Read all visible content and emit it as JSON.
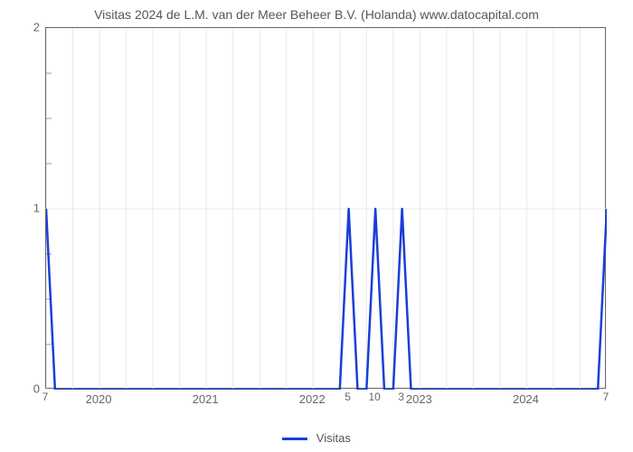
{
  "chart": {
    "type": "line",
    "title": "Visitas 2024 de L.M. van der Meer Beheer B.V. (Holanda) www.datocapital.com",
    "title_fontsize": 14,
    "title_color": "#555555",
    "background_color": "#ffffff",
    "plot_border_color": "#666666",
    "grid_color": "#e8e8e8",
    "line_color": "#1a3fd6",
    "line_width": 2.5,
    "xlim": [
      0,
      63
    ],
    "ylim": [
      0,
      2
    ],
    "y_ticks": [
      0,
      1,
      2
    ],
    "y_minor_ticks": [
      0.25,
      0.5,
      0.75,
      1.25,
      1.5,
      1.75
    ],
    "x_major_labels": [
      {
        "x": 6,
        "label": "2020"
      },
      {
        "x": 18,
        "label": "2021"
      },
      {
        "x": 30,
        "label": "2022"
      },
      {
        "x": 42,
        "label": "2023"
      },
      {
        "x": 54,
        "label": "2024"
      }
    ],
    "x_major_positions": [
      0,
      3,
      6,
      9,
      12,
      15,
      18,
      21,
      24,
      27,
      30,
      33,
      36,
      39,
      42,
      45,
      48,
      51,
      54,
      57,
      60,
      63
    ],
    "data": {
      "x": [
        0,
        1,
        2,
        3,
        4,
        5,
        6,
        7,
        8,
        9,
        10,
        11,
        12,
        13,
        14,
        15,
        16,
        17,
        18,
        19,
        20,
        21,
        22,
        23,
        24,
        25,
        26,
        27,
        28,
        29,
        30,
        31,
        32,
        33,
        34,
        35,
        36,
        37,
        38,
        39,
        40,
        41,
        42,
        43,
        44,
        45,
        46,
        47,
        48,
        49,
        50,
        51,
        52,
        53,
        54,
        55,
        56,
        57,
        58,
        59,
        60,
        61,
        62,
        63
      ],
      "y": [
        7,
        0,
        0,
        0,
        0,
        0,
        0,
        0,
        0,
        0,
        0,
        0,
        0,
        0,
        0,
        0,
        0,
        0,
        0,
        0,
        0,
        0,
        0,
        0,
        0,
        0,
        0,
        0,
        0,
        0,
        0,
        0,
        0,
        0,
        5,
        0,
        0,
        10,
        0,
        0,
        3,
        0,
        0,
        0,
        0,
        0,
        0,
        0,
        0,
        0,
        0,
        0,
        0,
        0,
        0,
        0,
        0,
        0,
        0,
        0,
        0,
        0,
        0,
        7
      ],
      "y_capped": [
        1,
        0,
        0,
        0,
        0,
        0,
        0,
        0,
        0,
        0,
        0,
        0,
        0,
        0,
        0,
        0,
        0,
        0,
        0,
        0,
        0,
        0,
        0,
        0,
        0,
        0,
        0,
        0,
        0,
        0,
        0,
        0,
        0,
        0,
        1,
        0,
        0,
        1,
        0,
        0,
        1,
        0,
        0,
        0,
        0,
        0,
        0,
        0,
        0,
        0,
        0,
        0,
        0,
        0,
        0,
        0,
        0,
        0,
        0,
        0,
        0,
        0,
        0,
        1
      ]
    },
    "point_labels": [
      {
        "x": 0,
        "value": "7"
      },
      {
        "x": 34,
        "value": "5"
      },
      {
        "x": 37,
        "value": "10"
      },
      {
        "x": 40,
        "value": "3"
      },
      {
        "x": 63,
        "value": "7"
      }
    ],
    "legend": {
      "label": "Visitas",
      "color": "#1a3fd6"
    }
  }
}
